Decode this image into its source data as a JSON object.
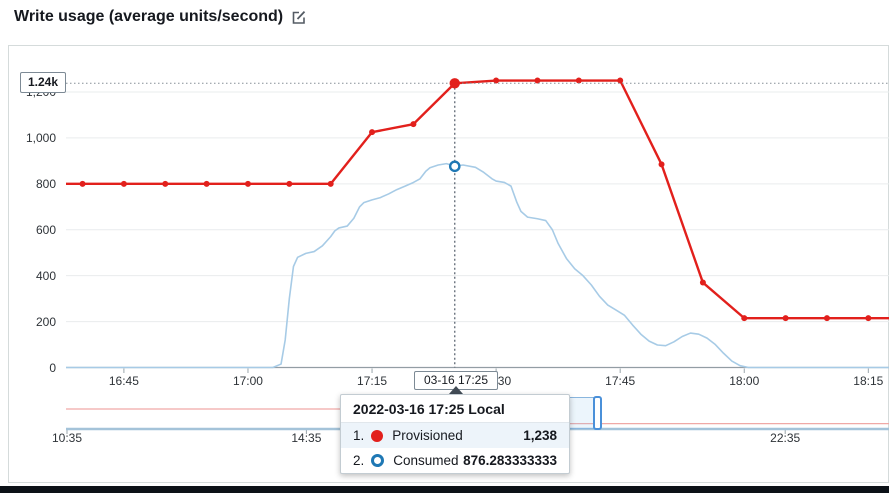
{
  "header": {
    "title": "Write usage (average units/second)"
  },
  "hover": {
    "y_value_label": "1.24k",
    "x_value_label": "03-16 17:25",
    "tooltip": {
      "title": "2022-03-16 17:25 Local",
      "rows": [
        {
          "index": "1.",
          "series": "Provisioned",
          "value": "1,238",
          "marker": "filled-red-circle"
        },
        {
          "index": "2.",
          "series": "Consumed",
          "value": "876.283333333",
          "marker": "hollow-blue-circle"
        }
      ]
    }
  },
  "colors": {
    "provisioned_red": "#e2201c",
    "consumed_line_blue": "#a7cbe6",
    "consumed_marker_blue": "#1f78b4",
    "brush_provisioned_pink": "#f0a9a6",
    "brush_consumed_steel": "#a4c3d9",
    "selection_blue": "#4a90d9",
    "tooltip_row_highlight": "#edf4fa",
    "gridline": "#e9eced",
    "axis_line": "#939da4"
  },
  "chart_data": {
    "type": "line",
    "title": "Write usage (average units/second)",
    "ylabel": "average units/second",
    "ylim": [
      0,
      1300
    ],
    "grid": "horizontal",
    "legend_position": "tooltip-only",
    "y_ticks": [
      {
        "v": 0,
        "label": "0"
      },
      {
        "v": 200,
        "label": "200"
      },
      {
        "v": 400,
        "label": "400"
      },
      {
        "v": 600,
        "label": "600"
      },
      {
        "v": 800,
        "label": "800"
      },
      {
        "v": 1000,
        "label": "1,000"
      },
      {
        "v": 1200,
        "label": "1,200"
      }
    ],
    "x_ticks": [
      "16:45",
      "17:00",
      "17:15",
      "17:30",
      "17:45",
      "18:00",
      "18:15"
    ],
    "hover_point": {
      "time": "17:25",
      "provisioned": 1238,
      "consumed": 876.283333333
    },
    "series": [
      {
        "name": "Provisioned",
        "style": "line-with-dots",
        "points": [
          [
            "16:38",
            800
          ],
          [
            "16:40",
            800
          ],
          [
            "16:45",
            800
          ],
          [
            "16:50",
            800
          ],
          [
            "16:55",
            800
          ],
          [
            "17:00",
            800
          ],
          [
            "17:05",
            800
          ],
          [
            "17:10",
            800
          ],
          [
            "17:15",
            1025
          ],
          [
            "17:20",
            1060
          ],
          [
            "17:25",
            1238
          ],
          [
            "17:30",
            1250
          ],
          [
            "17:35",
            1250
          ],
          [
            "17:40",
            1250
          ],
          [
            "17:45",
            1250
          ],
          [
            "17:50",
            885
          ],
          [
            "17:55",
            370
          ],
          [
            "18:00",
            215
          ],
          [
            "18:05",
            215
          ],
          [
            "18:10",
            215
          ],
          [
            "18:15",
            215
          ],
          [
            "18:20",
            215
          ]
        ]
      },
      {
        "name": "Consumed",
        "style": "line",
        "points": [
          [
            "16:38",
            0
          ],
          [
            "17:03",
            0
          ],
          [
            "17:04",
            15
          ],
          [
            "17:04:30",
            120
          ],
          [
            "17:05",
            300
          ],
          [
            "17:05:30",
            440
          ],
          [
            "17:06",
            480
          ],
          [
            "17:07",
            497
          ],
          [
            "17:08",
            505
          ],
          [
            "17:09",
            530
          ],
          [
            "17:10",
            570
          ],
          [
            "17:10:30",
            595
          ],
          [
            "17:11",
            608
          ],
          [
            "17:12",
            616
          ],
          [
            "17:12:48",
            650
          ],
          [
            "17:13:30",
            700
          ],
          [
            "17:14",
            718
          ],
          [
            "17:15",
            730
          ],
          [
            "17:16",
            740
          ],
          [
            "17:17",
            756
          ],
          [
            "17:18",
            775
          ],
          [
            "17:19",
            790
          ],
          [
            "17:20",
            806
          ],
          [
            "17:20:48",
            822
          ],
          [
            "17:21:30",
            855
          ],
          [
            "17:22",
            870
          ],
          [
            "17:23",
            882
          ],
          [
            "17:24",
            888
          ],
          [
            "17:25",
            876.283333333
          ],
          [
            "17:26",
            882
          ],
          [
            "17:27:30",
            872
          ],
          [
            "17:28:30",
            850
          ],
          [
            "17:29:30",
            822
          ],
          [
            "17:30",
            812
          ],
          [
            "17:31",
            806
          ],
          [
            "17:31:48",
            790
          ],
          [
            "17:32:30",
            720
          ],
          [
            "17:33",
            680
          ],
          [
            "17:33:48",
            655
          ],
          [
            "17:35",
            648
          ],
          [
            "17:36",
            640
          ],
          [
            "17:36:48",
            600
          ],
          [
            "17:37:30",
            540
          ],
          [
            "17:38:30",
            475
          ],
          [
            "17:39:30",
            430
          ],
          [
            "17:40:30",
            400
          ],
          [
            "17:41:30",
            360
          ],
          [
            "17:42:30",
            310
          ],
          [
            "17:43:30",
            272
          ],
          [
            "17:44:30",
            250
          ],
          [
            "17:45:30",
            228
          ],
          [
            "17:46:30",
            185
          ],
          [
            "17:47:30",
            145
          ],
          [
            "17:48:30",
            115
          ],
          [
            "17:49:30",
            98
          ],
          [
            "17:50:30",
            95
          ],
          [
            "17:51:30",
            112
          ],
          [
            "17:52:30",
            135
          ],
          [
            "17:53:30",
            150
          ],
          [
            "17:54:30",
            145
          ],
          [
            "17:55:30",
            128
          ],
          [
            "17:56:30",
            100
          ],
          [
            "17:57:30",
            62
          ],
          [
            "17:58:30",
            28
          ],
          [
            "17:59:30",
            8
          ],
          [
            "18:00:30",
            0
          ],
          [
            "18:20",
            0
          ]
        ]
      }
    ],
    "brush": {
      "x_ticks": [
        "10:35",
        "14:35",
        "22:35"
      ],
      "series": [
        {
          "name": "Provisioned",
          "points": [
            [
              "10:34",
              800
            ],
            [
              "17:08",
              800
            ],
            [
              "17:20",
              1245
            ],
            [
              "17:45",
              1250
            ],
            [
              "17:55",
              450
            ],
            [
              "18:05",
              215
            ],
            [
              "23:59",
              215
            ]
          ]
        },
        {
          "name": "Consumed",
          "points": [
            [
              "10:34",
              0
            ],
            [
              "17:03",
              0
            ],
            [
              "17:07",
              600
            ],
            [
              "17:12",
              640
            ],
            [
              "17:15",
              790
            ],
            [
              "17:21",
              870
            ],
            [
              "17:26",
              878
            ],
            [
              "17:31",
              800
            ],
            [
              "17:34",
              650
            ],
            [
              "17:40",
              395
            ],
            [
              "17:48",
              105
            ],
            [
              "17:53",
              148
            ],
            [
              "18:01",
              0
            ],
            [
              "23:59",
              0
            ]
          ]
        }
      ]
    }
  }
}
